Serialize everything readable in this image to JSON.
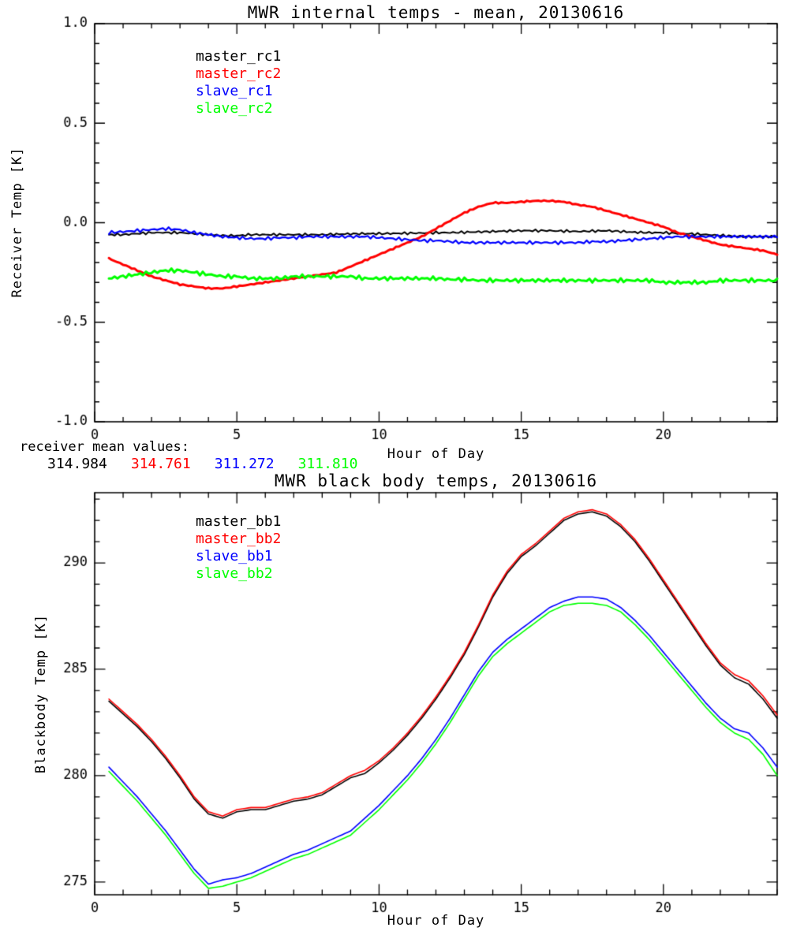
{
  "figure": {
    "background": "#ffffff"
  },
  "chart_data": [
    {
      "type": "line",
      "title": "MWR internal temps - mean, 20130616",
      "xlabel": "Hour of Day",
      "ylabel": "Receiver Temp [K]",
      "xlim": [
        0,
        24
      ],
      "ylim": [
        -1.0,
        1.0
      ],
      "xticks": [
        0,
        5,
        10,
        15,
        20
      ],
      "xtick_labels": [
        "0",
        "5",
        "10",
        "15",
        "20"
      ],
      "ytick_values": [
        1.0,
        0.5,
        0.0,
        -0.5,
        -1.0
      ],
      "ytick_labels": [
        "1.0",
        "0.5",
        "0.0",
        "-0.5",
        "-1.0"
      ],
      "minor_x": 1,
      "minor_y": 0.1,
      "grid": false,
      "legend_position": "upper-left-inside",
      "legend": [
        {
          "label": "master_rc1",
          "color": "#000000"
        },
        {
          "label": "master_rc2",
          "color": "#ff0000"
        },
        {
          "label": "slave_rc1",
          "color": "#0000ff"
        },
        {
          "label": "slave_rc2",
          "color": "#00ff00"
        }
      ],
      "x": [
        0.5,
        1,
        1.5,
        2,
        2.5,
        3,
        3.5,
        4,
        4.5,
        5,
        5.5,
        6,
        6.5,
        7,
        7.5,
        8,
        8.5,
        9,
        9.5,
        10,
        10.5,
        11,
        11.5,
        12,
        12.5,
        13,
        13.5,
        14,
        14.5,
        15,
        15.5,
        16,
        16.5,
        17,
        17.5,
        18,
        18.5,
        19,
        19.5,
        20,
        20.5,
        21,
        21.5,
        22,
        22.5,
        23,
        23.5,
        24
      ],
      "series": [
        {
          "name": "master_rc1",
          "color": "#000000",
          "noise": 0.007,
          "values": [
            -0.06,
            -0.06,
            -0.055,
            -0.05,
            -0.05,
            -0.05,
            -0.055,
            -0.06,
            -0.065,
            -0.065,
            -0.06,
            -0.06,
            -0.06,
            -0.06,
            -0.06,
            -0.06,
            -0.058,
            -0.056,
            -0.055,
            -0.055,
            -0.054,
            -0.053,
            -0.052,
            -0.05,
            -0.05,
            -0.048,
            -0.046,
            -0.044,
            -0.042,
            -0.04,
            -0.04,
            -0.04,
            -0.042,
            -0.044,
            -0.042,
            -0.04,
            -0.044,
            -0.048,
            -0.05,
            -0.05,
            -0.054,
            -0.056,
            -0.06,
            -0.064,
            -0.068,
            -0.07,
            -0.07,
            -0.07
          ]
        },
        {
          "name": "master_rc2",
          "color": "#ff0000",
          "noise": 0.004,
          "values": [
            -0.18,
            -0.21,
            -0.24,
            -0.27,
            -0.29,
            -0.31,
            -0.32,
            -0.33,
            -0.33,
            -0.32,
            -0.31,
            -0.3,
            -0.29,
            -0.28,
            -0.27,
            -0.26,
            -0.25,
            -0.22,
            -0.19,
            -0.16,
            -0.13,
            -0.1,
            -0.07,
            -0.03,
            0.01,
            0.05,
            0.08,
            0.1,
            0.1,
            0.105,
            0.11,
            0.11,
            0.105,
            0.09,
            0.08,
            0.06,
            0.04,
            0.02,
            0.0,
            -0.02,
            -0.05,
            -0.07,
            -0.09,
            -0.11,
            -0.12,
            -0.13,
            -0.14,
            -0.16
          ]
        },
        {
          "name": "slave_rc1",
          "color": "#0000ff",
          "noise": 0.009,
          "values": [
            -0.05,
            -0.045,
            -0.04,
            -0.035,
            -0.03,
            -0.035,
            -0.05,
            -0.06,
            -0.07,
            -0.075,
            -0.08,
            -0.08,
            -0.075,
            -0.075,
            -0.07,
            -0.07,
            -0.07,
            -0.07,
            -0.07,
            -0.075,
            -0.08,
            -0.085,
            -0.09,
            -0.09,
            -0.095,
            -0.1,
            -0.1,
            -0.1,
            -0.1,
            -0.1,
            -0.1,
            -0.1,
            -0.1,
            -0.1,
            -0.095,
            -0.095,
            -0.09,
            -0.085,
            -0.08,
            -0.075,
            -0.07,
            -0.07,
            -0.07,
            -0.07,
            -0.07,
            -0.07,
            -0.07,
            -0.07
          ]
        },
        {
          "name": "slave_rc2",
          "color": "#00ff00",
          "noise": 0.011,
          "values": [
            -0.28,
            -0.27,
            -0.26,
            -0.25,
            -0.24,
            -0.24,
            -0.25,
            -0.26,
            -0.27,
            -0.27,
            -0.28,
            -0.28,
            -0.28,
            -0.27,
            -0.27,
            -0.27,
            -0.27,
            -0.27,
            -0.28,
            -0.28,
            -0.28,
            -0.28,
            -0.28,
            -0.28,
            -0.285,
            -0.285,
            -0.29,
            -0.29,
            -0.29,
            -0.29,
            -0.29,
            -0.29,
            -0.29,
            -0.29,
            -0.29,
            -0.29,
            -0.29,
            -0.29,
            -0.29,
            -0.3,
            -0.3,
            -0.3,
            -0.3,
            -0.29,
            -0.29,
            -0.29,
            -0.29,
            -0.29
          ]
        }
      ],
      "footer": {
        "label": "receiver mean values:",
        "values": [
          {
            "text": "314.984",
            "color": "#000000"
          },
          {
            "text": "314.761",
            "color": "#ff0000"
          },
          {
            "text": "311.272",
            "color": "#0000ff"
          },
          {
            "text": "311.810",
            "color": "#00ff00"
          }
        ]
      }
    },
    {
      "type": "line",
      "title": "MWR black body temps, 20130616",
      "xlabel": "Hour of Day",
      "ylabel": "Blackbody Temp [K]",
      "xlim": [
        0,
        24
      ],
      "ylim": [
        274.4,
        293.3
      ],
      "xticks": [
        0,
        5,
        10,
        15,
        20
      ],
      "xtick_labels": [
        "0",
        "5",
        "10",
        "15",
        "20"
      ],
      "ytick_values": [
        275,
        280,
        285,
        290
      ],
      "ytick_labels": [
        "275",
        "280",
        "285",
        "290"
      ],
      "minor_x": 1,
      "minor_y": 1,
      "grid": false,
      "legend_position": "upper-left-inside",
      "legend": [
        {
          "label": "master_bb1",
          "color": "#000000"
        },
        {
          "label": "master_bb2",
          "color": "#ff0000"
        },
        {
          "label": "slave_bb1",
          "color": "#0000ff"
        },
        {
          "label": "slave_bb2",
          "color": "#00ff00"
        }
      ],
      "x": [
        0.5,
        1,
        1.5,
        2,
        2.5,
        3,
        3.5,
        4,
        4.5,
        5,
        5.5,
        6,
        6.5,
        7,
        7.5,
        8,
        8.5,
        9,
        9.5,
        10,
        10.5,
        11,
        11.5,
        12,
        12.5,
        13,
        13.5,
        14,
        14.5,
        15,
        15.5,
        16,
        16.5,
        17,
        17.5,
        18,
        18.5,
        19,
        19.5,
        20,
        20.5,
        21,
        21.5,
        22,
        22.5,
        23,
        23.5,
        24
      ],
      "series": [
        {
          "name": "master_bb1",
          "color": "#000000",
          "noise": 0,
          "values": [
            283.5,
            282.9,
            282.3,
            281.6,
            280.8,
            279.9,
            278.9,
            278.2,
            278.0,
            278.3,
            278.4,
            278.4,
            278.6,
            278.8,
            278.9,
            279.1,
            279.5,
            279.9,
            280.1,
            280.6,
            281.2,
            281.9,
            282.7,
            283.6,
            284.6,
            285.7,
            287.0,
            288.4,
            289.5,
            290.3,
            290.8,
            291.4,
            292.0,
            292.3,
            292.4,
            292.2,
            291.7,
            291.0,
            290.1,
            289.1,
            288.1,
            287.1,
            286.1,
            285.2,
            284.6,
            284.3,
            283.6,
            282.7
          ]
        },
        {
          "name": "master_bb2",
          "color": "#ff0000",
          "noise": 0,
          "values": [
            283.6,
            283.0,
            282.4,
            281.7,
            280.9,
            280.0,
            279.0,
            278.3,
            278.1,
            278.4,
            278.5,
            278.5,
            278.7,
            278.9,
            279.0,
            279.2,
            279.6,
            280.0,
            280.25,
            280.7,
            281.3,
            282.0,
            282.8,
            283.7,
            284.7,
            285.8,
            287.1,
            288.5,
            289.6,
            290.4,
            290.9,
            291.5,
            292.1,
            292.4,
            292.5,
            292.3,
            291.8,
            291.1,
            290.2,
            289.2,
            288.2,
            287.2,
            286.2,
            285.3,
            284.75,
            284.45,
            283.75,
            282.85
          ]
        },
        {
          "name": "slave_bb1",
          "color": "#0000ff",
          "noise": 0,
          "values": [
            280.4,
            279.7,
            279.0,
            278.2,
            277.4,
            276.5,
            275.6,
            274.9,
            275.1,
            275.2,
            275.4,
            275.7,
            276.0,
            276.3,
            276.5,
            276.8,
            277.1,
            277.4,
            278.0,
            278.6,
            279.3,
            280.0,
            280.8,
            281.7,
            282.7,
            283.8,
            284.9,
            285.8,
            286.4,
            286.9,
            287.4,
            287.9,
            288.2,
            288.4,
            288.4,
            288.3,
            287.9,
            287.3,
            286.6,
            285.8,
            285.0,
            284.2,
            283.4,
            282.7,
            282.2,
            282.0,
            281.3,
            280.4
          ]
        },
        {
          "name": "slave_bb2",
          "color": "#00ff00",
          "noise": 0,
          "values": [
            280.2,
            279.5,
            278.8,
            278.0,
            277.2,
            276.3,
            275.4,
            274.7,
            274.8,
            275.0,
            275.2,
            275.5,
            275.8,
            276.1,
            276.3,
            276.6,
            276.9,
            277.2,
            277.8,
            278.4,
            279.1,
            279.8,
            280.6,
            281.5,
            282.5,
            283.6,
            284.7,
            285.6,
            286.2,
            286.7,
            287.2,
            287.7,
            288.0,
            288.1,
            288.1,
            288.0,
            287.7,
            287.1,
            286.4,
            285.6,
            284.8,
            284.0,
            283.2,
            282.5,
            282.0,
            281.7,
            281.0,
            280.0
          ]
        }
      ]
    }
  ]
}
